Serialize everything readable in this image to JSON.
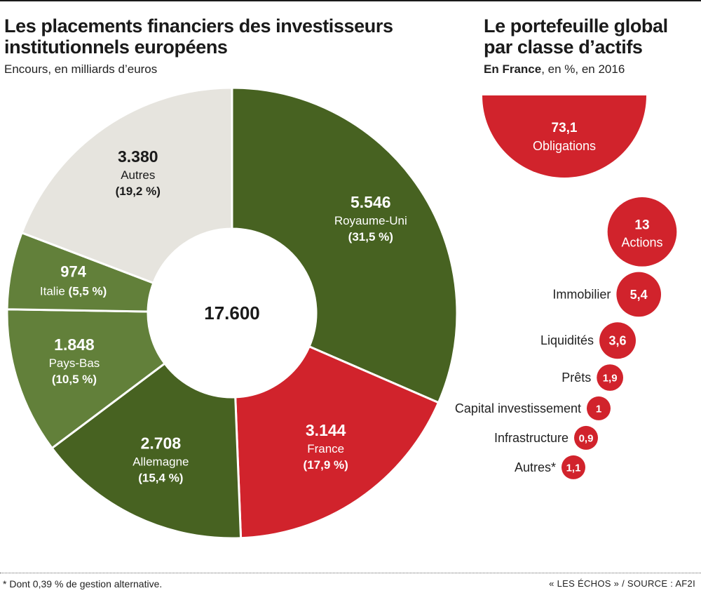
{
  "left_chart": {
    "title": "Les placements financiers des investisseurs institutionnels européens",
    "subtitle": "Encours, en milliards d’euros"
  },
  "right_chart": {
    "title": "Le portefeuille global par classe d’actifs",
    "subtitle_bold": "En France",
    "subtitle_rest": ", en %, en 2016"
  },
  "footnote": "* Dont 0,39 % de gestion alternative.",
  "source": "« LES ÉCHOS » / SOURCE : AF2I",
  "colors": {
    "dark_green": "#476221",
    "medium_green": "#62803a",
    "red": "#d1232c",
    "grey": "#e6e4de",
    "ink": "#1a1a1a"
  },
  "chart_data": [
    {
      "type": "pie",
      "variant": "donut",
      "title": "Les placements financiers des investisseurs institutionnels européens",
      "subtitle": "Encours, en milliards d’euros",
      "center_label": "17.600",
      "total": 17600,
      "slices": [
        {
          "name": "Royaume-Uni",
          "value": 5546,
          "value_label": "5.546",
          "pct_label": "(31,5 %)",
          "color": "#476221"
        },
        {
          "name": "France",
          "value": 3144,
          "value_label": "3.144",
          "pct_label": "(17,9 %)",
          "color": "#d1232c"
        },
        {
          "name": "Allemagne",
          "value": 2708,
          "value_label": "2.708",
          "pct_label": "(15,4 %)",
          "color": "#476221"
        },
        {
          "name": "Pays-Bas",
          "value": 1848,
          "value_label": "1.848",
          "pct_label": "(10,5 %)",
          "color": "#62803a"
        },
        {
          "name": "Italie",
          "value": 974,
          "value_label": "974",
          "pct_label": "(5,5 %)",
          "color": "#62803a"
        },
        {
          "name": "Autres",
          "value": 3380,
          "value_label": "3.380",
          "pct_label": "(19,2 %)",
          "color": "#e6e4de"
        }
      ]
    },
    {
      "type": "bubble",
      "title": "Le portefeuille global par classe d’actifs",
      "subtitle": "En France, en %, en 2016",
      "items": [
        {
          "name": "Obligations",
          "value": 73.1,
          "value_label": "73,1"
        },
        {
          "name": "Actions",
          "value": 13,
          "value_label": "13"
        },
        {
          "name": "Immobilier",
          "value": 5.4,
          "value_label": "5,4"
        },
        {
          "name": "Liquidités",
          "value": 3.6,
          "value_label": "3,6"
        },
        {
          "name": "Prêts",
          "value": 1.9,
          "value_label": "1,9"
        },
        {
          "name": "Capital investissement",
          "value": 1,
          "value_label": "1"
        },
        {
          "name": "Infrastructure",
          "value": 0.9,
          "value_label": "0,9"
        },
        {
          "name": "Autres*",
          "value": 1.1,
          "value_label": "1,1"
        }
      ]
    }
  ]
}
